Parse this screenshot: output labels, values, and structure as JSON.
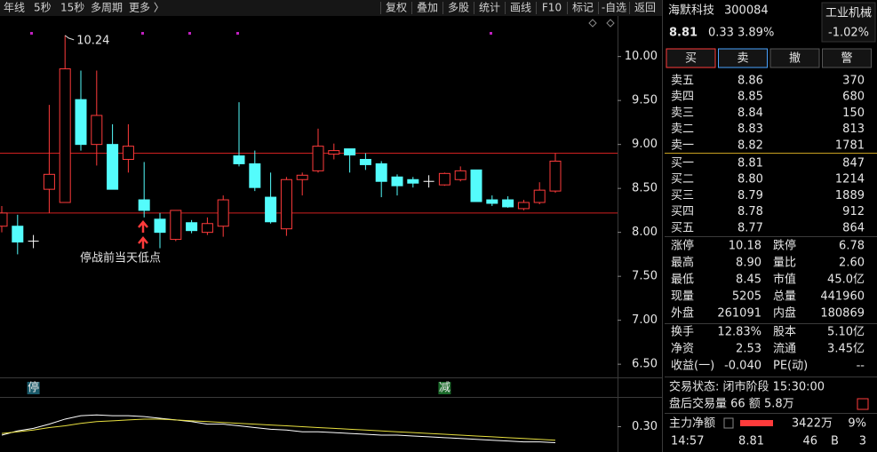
{
  "toolbar": {
    "left": [
      "年线",
      "5秒",
      "15秒",
      "多周期",
      "更多 〉"
    ],
    "right": [
      "复权",
      "叠加",
      "多股",
      "统计",
      "画线",
      "F10",
      "标记",
      "-自选",
      "返回"
    ]
  },
  "chart_data": [
    {
      "type": "candlestick",
      "categories": [
        null,
        null,
        null,
        null,
        null,
        null,
        null,
        null,
        null,
        null,
        null,
        null,
        null,
        null,
        null,
        null,
        null,
        null,
        null,
        null,
        null,
        null,
        null,
        null,
        null,
        null,
        null,
        null,
        null,
        null,
        null,
        null,
        null,
        null,
        null,
        null
      ],
      "open": [
        8.07,
        8.07,
        7.9,
        8.49,
        8.34,
        9.51,
        9.0,
        9.0,
        8.83,
        8.37,
        8.15,
        7.92,
        8.11,
        8.0,
        8.07,
        8.87,
        8.78,
        8.4,
        8.04,
        8.6,
        8.7,
        8.89,
        8.95,
        8.83,
        8.78,
        8.63,
        8.6,
        8.58,
        8.54,
        8.6,
        8.71,
        8.37,
        8.37,
        8.27,
        8.34,
        8.47
      ],
      "high": [
        8.3,
        8.2,
        7.97,
        9.45,
        10.24,
        9.84,
        9.84,
        9.23,
        9.23,
        8.8,
        8.22,
        8.25,
        8.14,
        8.17,
        8.42,
        9.48,
        8.93,
        8.68,
        8.63,
        8.68,
        9.18,
        9.01,
        8.95,
        8.9,
        8.81,
        8.66,
        8.63,
        8.65,
        8.68,
        8.75,
        8.71,
        8.42,
        8.41,
        8.37,
        8.57,
        8.9
      ],
      "low": [
        8.0,
        7.75,
        7.82,
        8.22,
        8.34,
        8.93,
        8.76,
        8.49,
        8.68,
        8.17,
        7.82,
        7.9,
        7.99,
        7.97,
        7.95,
        8.75,
        8.47,
        8.1,
        7.96,
        8.42,
        8.68,
        8.83,
        8.68,
        8.71,
        8.4,
        8.42,
        8.51,
        8.51,
        8.53,
        8.58,
        8.35,
        8.3,
        8.28,
        8.25,
        8.32,
        8.45
      ],
      "close": [
        8.22,
        7.89,
        7.9,
        8.66,
        9.86,
        9.0,
        9.33,
        8.49,
        8.98,
        8.25,
        8.0,
        8.25,
        8.02,
        8.1,
        8.37,
        8.78,
        8.51,
        8.12,
        8.6,
        8.65,
        8.98,
        8.93,
        8.88,
        8.77,
        8.58,
        8.53,
        8.56,
        8.58,
        8.67,
        8.7,
        8.35,
        8.33,
        8.29,
        8.34,
        8.48,
        8.81
      ],
      "signals": [
        null,
        null,
        "停",
        null,
        null,
        null,
        null,
        null,
        null,
        null,
        null,
        null,
        null,
        null,
        null,
        null,
        null,
        null,
        null,
        null,
        null,
        null,
        null,
        null,
        null,
        null,
        null,
        null,
        "减",
        null,
        null,
        null,
        null,
        null,
        null,
        null
      ],
      "up_color": "#ff3b3b",
      "down_color": "#54fcfc",
      "flat_color": "#ffffff",
      "ylim": [
        6.35,
        10.34
      ],
      "yticks": [
        {
          "value": 10,
          "label": "10.00"
        },
        {
          "value": 9.5,
          "label": "9.50"
        },
        {
          "value": 9,
          "label": "9.00"
        },
        {
          "value": 8.5,
          "label": "8.50"
        },
        {
          "value": 8,
          "label": "8.00"
        },
        {
          "value": 7.5,
          "label": "7.50"
        },
        {
          "value": 7,
          "label": "7.00"
        },
        {
          "value": 6.5,
          "label": "6.50"
        }
      ],
      "levels": [
        {
          "value": 8.9,
          "color": "#d02020"
        },
        {
          "value": 8.22,
          "color": "#d02020"
        }
      ],
      "max_label": 10.24,
      "annotation": "停战前当天低点"
    },
    {
      "type": "line",
      "series": [
        {
          "color": "#ffffff",
          "values": [
            0.2,
            0.25,
            0.28,
            0.33,
            0.39,
            0.43,
            0.44,
            0.43,
            0.43,
            0.42,
            0.4,
            0.38,
            0.36,
            0.33,
            0.33,
            0.31,
            0.29,
            0.27,
            0.26,
            0.24,
            0.24,
            0.23,
            0.22,
            0.21,
            0.2,
            0.2,
            0.19,
            0.18,
            0.17,
            0.16,
            0.15,
            0.14,
            0.13,
            0.12,
            0.12,
            0.11
          ]
        },
        {
          "color": "#e8e040",
          "values": [
            0.22,
            0.24,
            0.26,
            0.29,
            0.31,
            0.34,
            0.36,
            0.37,
            0.38,
            0.39,
            0.39,
            0.38,
            0.37,
            0.36,
            0.35,
            0.34,
            0.33,
            0.32,
            0.31,
            0.3,
            0.29,
            0.28,
            0.27,
            0.26,
            0.25,
            0.24,
            0.23,
            0.22,
            0.21,
            0.2,
            0.19,
            0.18,
            0.17,
            0.16,
            0.15,
            0.14
          ]
        }
      ],
      "ylim": [
        0,
        0.6
      ],
      "yticks": [
        {
          "value": 0.3,
          "label": "0.30"
        }
      ]
    }
  ],
  "quote": {
    "name": "海默科技",
    "code": "300084",
    "price": "8.81",
    "change": "0.33",
    "change_pct": "3.89%",
    "sector": "工业机械",
    "sector_pct": "-1.02%"
  },
  "actions": [
    "买",
    "卖",
    "撤",
    "警"
  ],
  "asks": [
    {
      "label": "卖五",
      "price": "8.86",
      "volume": "370"
    },
    {
      "label": "卖四",
      "price": "8.85",
      "volume": "680"
    },
    {
      "label": "卖三",
      "price": "8.84",
      "volume": "150"
    },
    {
      "label": "卖二",
      "price": "8.83",
      "volume": "813"
    },
    {
      "label": "卖一",
      "price": "8.82",
      "volume": "1781"
    }
  ],
  "bids": [
    {
      "label": "买一",
      "price": "8.81",
      "volume": "847"
    },
    {
      "label": "买二",
      "price": "8.80",
      "volume": "1214"
    },
    {
      "label": "买三",
      "price": "8.79",
      "volume": "1889"
    },
    {
      "label": "买四",
      "price": "8.78",
      "volume": "912"
    },
    {
      "label": "买五",
      "price": "8.77",
      "volume": "864"
    }
  ],
  "stats": [
    [
      {
        "label": "涨停",
        "value": "10.18",
        "color": "#ff3b3b"
      },
      {
        "label": "跌停",
        "value": "6.78",
        "color": "#2ecc40"
      }
    ],
    [
      {
        "label": "最高",
        "value": "8.90",
        "color": "#ff3b3b"
      },
      {
        "label": "量比",
        "value": "2.60",
        "color": "#ff3b3b"
      }
    ],
    [
      {
        "label": "最低",
        "value": "8.45",
        "color": "#2ecc40"
      },
      {
        "label": "市值",
        "value": "45.0亿",
        "color": "#e6e6e6"
      }
    ],
    [
      {
        "label": "现量",
        "value": "5205",
        "color": "#c040e0"
      },
      {
        "label": "总量",
        "value": "441960",
        "color": "#e6e6e6"
      }
    ],
    [
      {
        "label": "外盘",
        "value": "261091",
        "color": "#ff3b3b"
      },
      {
        "label": "内盘",
        "value": "180869",
        "color": "#2ecc40"
      }
    ]
  ],
  "fundamentals": [
    [
      {
        "label": "换手",
        "value": "12.83%"
      },
      {
        "label": "股本",
        "value": "5.10亿"
      }
    ],
    [
      {
        "label": "净资",
        "value": "2.53"
      },
      {
        "label": "流通",
        "value": "3.45亿"
      }
    ],
    [
      {
        "label": "收益(一)",
        "value": "-0.040"
      },
      {
        "label": "PE(动)",
        "value": "--"
      }
    ]
  ],
  "status": "交易状态: 闭市阶段 15:30:00",
  "after_hours": "盘后交易量 66 额 5.8万",
  "main_flow": {
    "label": "主力净额",
    "value": "3422万",
    "pct": "9%"
  },
  "last_tick": {
    "time": "14:57",
    "price": "8.81",
    "volume": "46",
    "side": "B",
    "count": "3"
  }
}
